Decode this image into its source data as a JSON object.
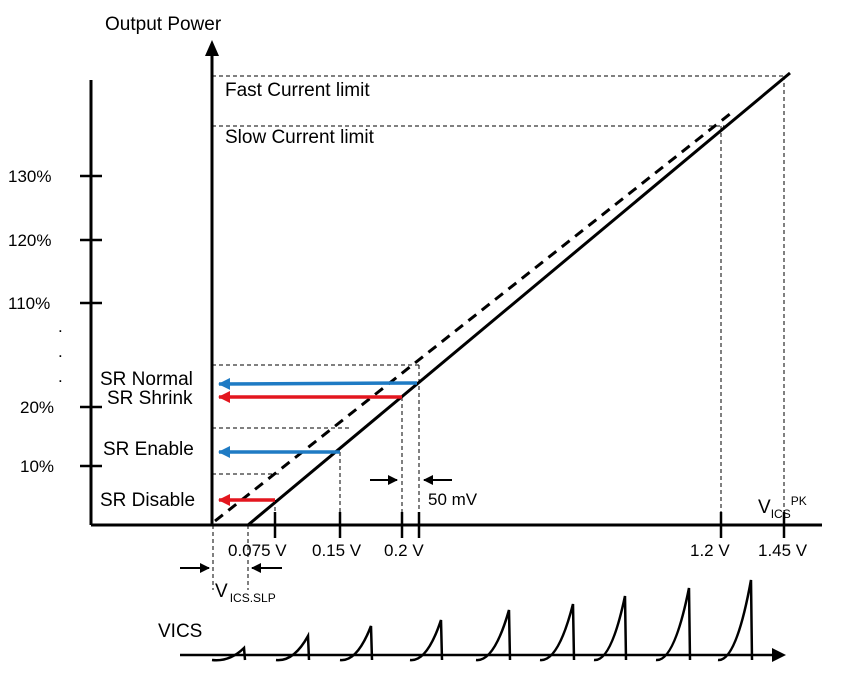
{
  "title": "Output Power",
  "limits": {
    "fast": "Fast Current limit",
    "slow": "Slow Current limit"
  },
  "left_axis_ticks": [
    "130%",
    "120%",
    "110%",
    ".",
    ".",
    ".",
    "20%",
    "10%"
  ],
  "sr_levels": {
    "normal": "SR Normal",
    "shrink": "SR Shrink",
    "enable": "SR Enable",
    "disable": "SR Disable"
  },
  "x_ticks": {
    "t075": "0.075 V",
    "t015": "0.15 V",
    "t02": "0.2 V",
    "t12": "1.2 V",
    "t145": "1.45 V"
  },
  "delta_label": "50 mV",
  "vics_pk": {
    "main": "V",
    "sub": "ICS",
    "sup": "PK"
  },
  "vics_slp": {
    "main": "V",
    "sub": "ICS.SLP"
  },
  "waveform_label": "VICS",
  "colors": {
    "line": "#000000",
    "blue_arrow": "#1f7bc4",
    "red_arrow": "#e3161e"
  }
}
